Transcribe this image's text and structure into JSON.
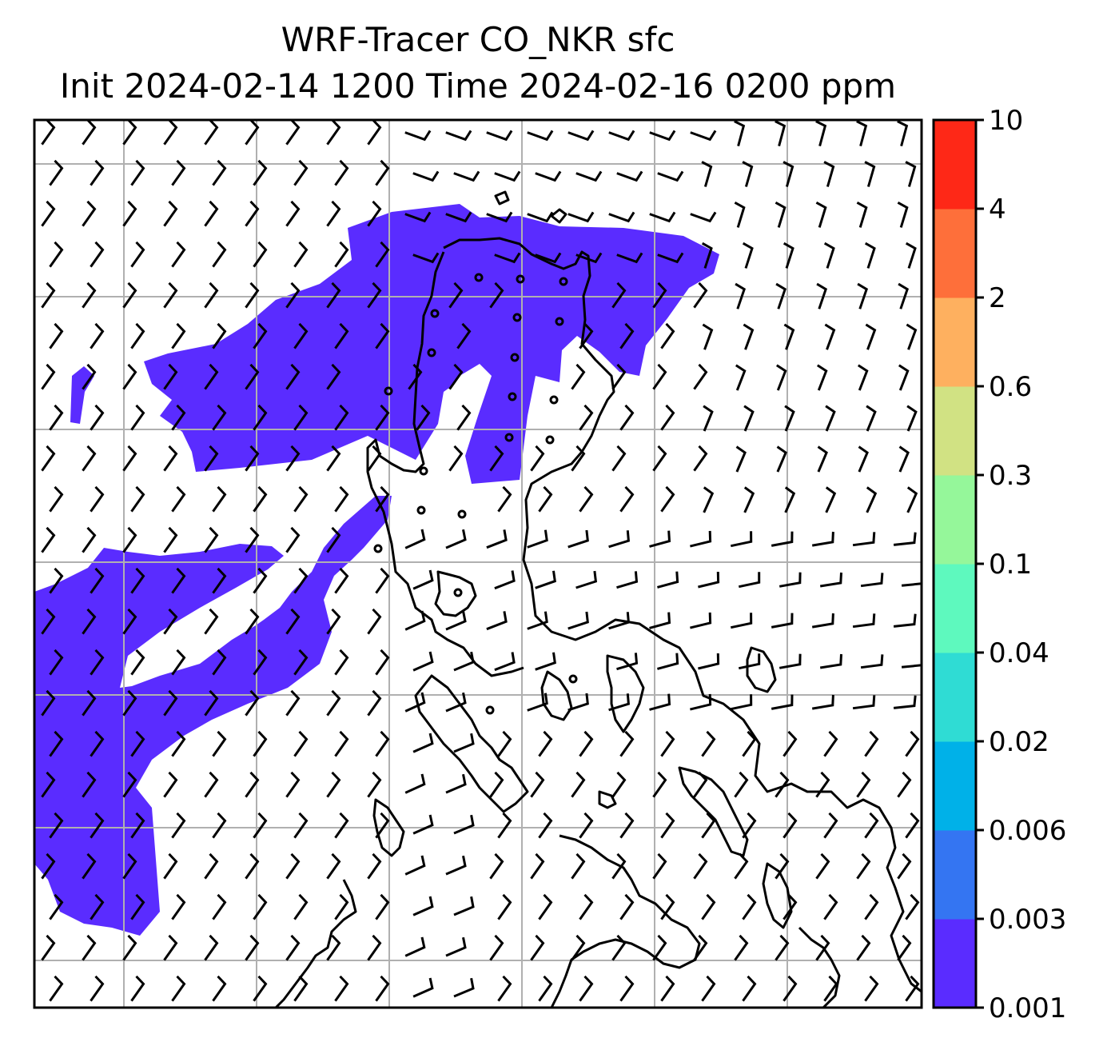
{
  "title": {
    "line1": "WRF-Tracer CO_NKR sfc",
    "line2": "Init 2024-02-14 1200 Time 2024-02-16 0200 ppm"
  },
  "colorbar": {
    "levels": [
      "0.001",
      "0.003",
      "0.006",
      "0.02",
      "0.04",
      "0.1",
      "0.3",
      "0.6",
      "2",
      "4",
      "10"
    ],
    "colors": [
      "#5a2cff",
      "#3475f2",
      "#00b1e8",
      "#2fdcd4",
      "#5ef9be",
      "#95f79a",
      "#d1e283",
      "#feb05f",
      "#fe6f3a",
      "#fe2817"
    ]
  },
  "map": {
    "plume_color": "#5a2cff",
    "coastline_color": "#000000",
    "gridline_color": "#b0b0b0",
    "wind_barb_color": "#000000"
  }
}
